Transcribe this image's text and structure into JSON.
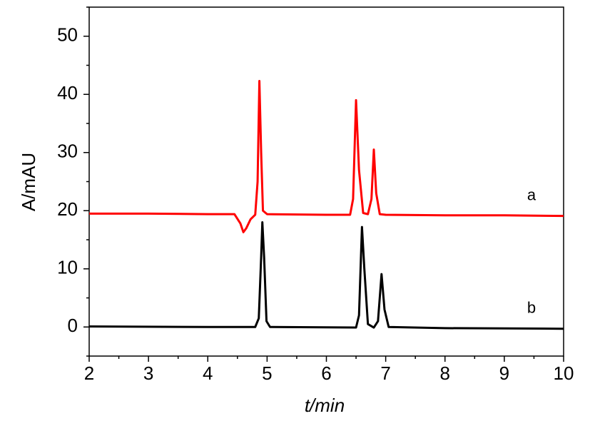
{
  "chart_data": {
    "type": "line",
    "xlabel": "t/min",
    "ylabel": "A/mAU",
    "xlim": [
      2,
      10
    ],
    "ylim": [
      -5,
      55
    ],
    "xticks": [
      2,
      3,
      4,
      5,
      6,
      7,
      8,
      9,
      10
    ],
    "yticks": [
      0,
      10,
      20,
      30,
      40,
      50
    ],
    "xminorticks": [
      2.5,
      3.5,
      4.5,
      5.5,
      6.5,
      7.5,
      8.5,
      9.5
    ],
    "yminorticks": [
      -5,
      5,
      15,
      25,
      35,
      45,
      55
    ],
    "grid": false,
    "series": [
      {
        "name": "a",
        "color": "#ff0000",
        "x": [
          2,
          3,
          4,
          4.45,
          4.55,
          4.6,
          4.65,
          4.72,
          4.8,
          4.84,
          4.87,
          4.9,
          4.93,
          5.0,
          6.0,
          6.4,
          6.45,
          6.5,
          6.55,
          6.62,
          6.7,
          6.76,
          6.8,
          6.84,
          6.9,
          7.0,
          8,
          9,
          10
        ],
        "values": [
          19.5,
          19.5,
          19.4,
          19.4,
          17.8,
          16.3,
          17.0,
          18.5,
          19.3,
          25,
          42.3,
          30,
          20,
          19.4,
          19.3,
          19.3,
          22,
          39.0,
          27,
          19.6,
          19.4,
          22,
          30.5,
          23,
          19.4,
          19.3,
          19.2,
          19.2,
          19.1
        ]
      },
      {
        "name": "b",
        "color": "#000000",
        "x": [
          2,
          4,
          4.8,
          4.86,
          4.9,
          4.92,
          4.95,
          4.99,
          5.05,
          6.5,
          6.55,
          6.6,
          6.64,
          6.7,
          6.8,
          6.87,
          6.93,
          6.98,
          7.05,
          8,
          10
        ],
        "values": [
          0.1,
          0,
          0,
          1.5,
          12,
          18,
          12,
          1,
          0,
          -0.1,
          2,
          17.2,
          10,
          0.5,
          -0.1,
          1,
          9.1,
          3,
          0,
          -0.2,
          -0.3
        ]
      }
    ]
  }
}
